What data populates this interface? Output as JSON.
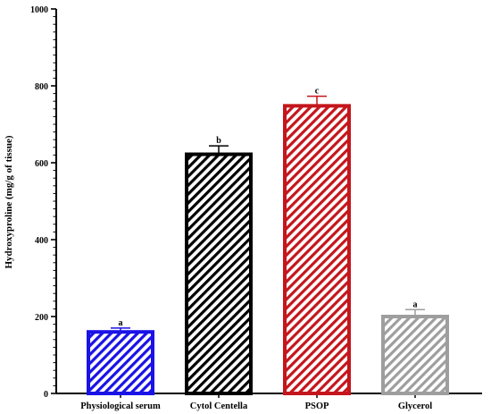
{
  "chart_data": {
    "type": "bar",
    "title": "",
    "xlabel": "",
    "ylabel": "Hydroxyproline (mg/g of tissue)",
    "ylim": [
      0,
      1000
    ],
    "yticks": [
      0,
      200,
      400,
      600,
      800,
      1000
    ],
    "categories": [
      "Physiological serum",
      "Cytol Centella",
      "PSOP",
      "Glycerol"
    ],
    "values": [
      160,
      622,
      748,
      200
    ],
    "errors": [
      10,
      22,
      25,
      18
    ],
    "letters": [
      "a",
      "b",
      "c",
      "a"
    ],
    "colors": [
      "#1a12e6",
      "#000000",
      "#c4161c",
      "#9e9e9e"
    ],
    "fill_pattern": "diagonal-hatch"
  }
}
